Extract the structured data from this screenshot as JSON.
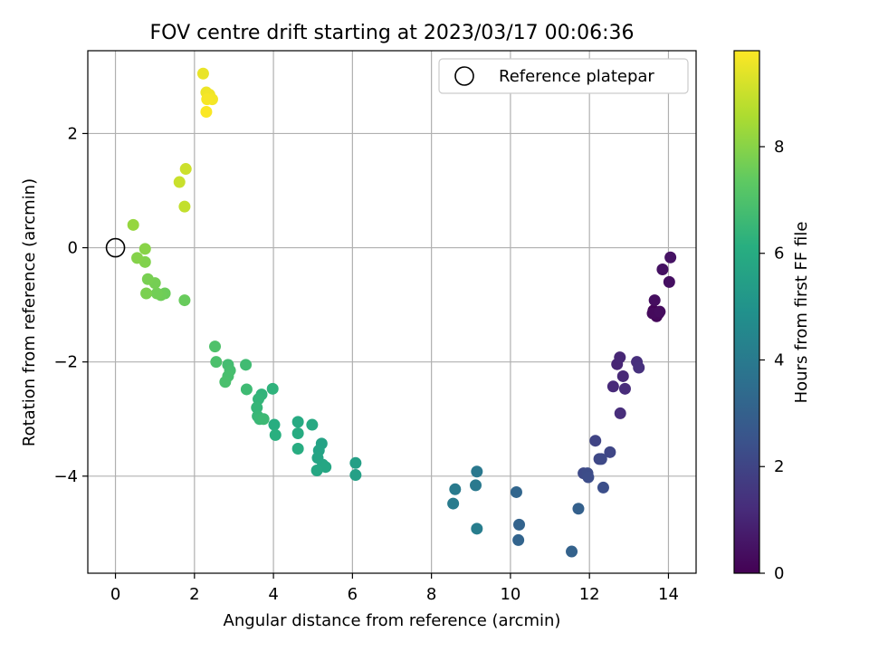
{
  "chart_data": {
    "type": "scatter",
    "title": "FOV centre drift starting at 2023/03/17 00:06:36",
    "xlabel": "Angular distance from reference (arcmin)",
    "ylabel": "Rotation from reference (arcmin)",
    "xlim": [
      -0.7,
      14.7
    ],
    "ylim": [
      -5.7,
      3.45
    ],
    "xticks": [
      0,
      2,
      4,
      6,
      8,
      10,
      12,
      14
    ],
    "yticks": [
      -4,
      -2,
      0,
      2
    ],
    "grid": true,
    "legend": {
      "placement": "top-right",
      "entries": [
        "Reference platepar"
      ]
    },
    "reference_point": {
      "x": 0,
      "y": 0,
      "label": "Reference platepar"
    },
    "colorbar": {
      "label": "Hours from first FF file",
      "colormap": "viridis",
      "range": [
        0,
        9.8
      ],
      "ticks": [
        0,
        2,
        4,
        6,
        8
      ]
    },
    "point_value_name": "hours",
    "points": [
      {
        "x": 13.62,
        "y": -1.1,
        "c": 0.1
      },
      {
        "x": 13.7,
        "y": -1.2,
        "c": 0.15
      },
      {
        "x": 13.75,
        "y": -1.15,
        "c": 0.2
      },
      {
        "x": 13.6,
        "y": -1.15,
        "c": 0.25
      },
      {
        "x": 13.78,
        "y": -1.12,
        "c": 0.3
      },
      {
        "x": 13.65,
        "y": -0.92,
        "c": 0.35
      },
      {
        "x": 14.02,
        "y": -0.6,
        "c": 0.4
      },
      {
        "x": 13.85,
        "y": -0.38,
        "c": 0.45
      },
      {
        "x": 14.05,
        "y": -0.17,
        "c": 0.5
      },
      {
        "x": 12.7,
        "y": -2.04,
        "c": 1.0
      },
      {
        "x": 12.77,
        "y": -1.92,
        "c": 1.05
      },
      {
        "x": 12.85,
        "y": -2.25,
        "c": 1.1
      },
      {
        "x": 12.6,
        "y": -2.43,
        "c": 1.15
      },
      {
        "x": 12.9,
        "y": -2.47,
        "c": 1.2
      },
      {
        "x": 12.78,
        "y": -2.9,
        "c": 1.25
      },
      {
        "x": 13.2,
        "y": -2.0,
        "c": 1.3
      },
      {
        "x": 13.25,
        "y": -2.1,
        "c": 1.35
      },
      {
        "x": 12.15,
        "y": -3.38,
        "c": 2.0
      },
      {
        "x": 12.52,
        "y": -3.58,
        "c": 2.05
      },
      {
        "x": 12.25,
        "y": -3.7,
        "c": 2.1
      },
      {
        "x": 12.3,
        "y": -3.7,
        "c": 2.15
      },
      {
        "x": 11.85,
        "y": -3.95,
        "c": 2.2
      },
      {
        "x": 11.95,
        "y": -3.95,
        "c": 2.25
      },
      {
        "x": 11.97,
        "y": -4.02,
        "c": 2.3
      },
      {
        "x": 12.35,
        "y": -4.2,
        "c": 2.35
      },
      {
        "x": 11.72,
        "y": -4.57,
        "c": 3.0
      },
      {
        "x": 11.55,
        "y": -5.32,
        "c": 3.05
      },
      {
        "x": 10.22,
        "y": -4.85,
        "c": 3.1
      },
      {
        "x": 10.2,
        "y": -5.12,
        "c": 3.15
      },
      {
        "x": 10.15,
        "y": -4.28,
        "c": 3.2
      },
      {
        "x": 9.15,
        "y": -3.92,
        "c": 3.9
      },
      {
        "x": 9.12,
        "y": -4.16,
        "c": 3.95
      },
      {
        "x": 8.6,
        "y": -4.23,
        "c": 4.0
      },
      {
        "x": 8.55,
        "y": -4.48,
        "c": 4.05
      },
      {
        "x": 9.15,
        "y": -4.92,
        "c": 4.1
      },
      {
        "x": 6.08,
        "y": -3.77,
        "c": 5.5
      },
      {
        "x": 6.08,
        "y": -3.98,
        "c": 5.55
      },
      {
        "x": 5.22,
        "y": -3.43,
        "c": 5.6
      },
      {
        "x": 5.15,
        "y": -3.55,
        "c": 5.65
      },
      {
        "x": 5.12,
        "y": -3.68,
        "c": 5.7
      },
      {
        "x": 5.25,
        "y": -3.8,
        "c": 5.75
      },
      {
        "x": 5.32,
        "y": -3.84,
        "c": 5.8
      },
      {
        "x": 5.1,
        "y": -3.9,
        "c": 5.85
      },
      {
        "x": 4.98,
        "y": -3.1,
        "c": 5.9
      },
      {
        "x": 4.62,
        "y": -3.05,
        "c": 5.95
      },
      {
        "x": 4.62,
        "y": -3.25,
        "c": 6.0
      },
      {
        "x": 4.62,
        "y": -3.52,
        "c": 6.05
      },
      {
        "x": 4.02,
        "y": -3.1,
        "c": 6.1
      },
      {
        "x": 4.05,
        "y": -3.28,
        "c": 6.15
      },
      {
        "x": 3.98,
        "y": -2.47,
        "c": 6.3
      },
      {
        "x": 3.7,
        "y": -2.57,
        "c": 6.35
      },
      {
        "x": 3.62,
        "y": -2.65,
        "c": 6.4
      },
      {
        "x": 3.58,
        "y": -2.8,
        "c": 6.45
      },
      {
        "x": 3.6,
        "y": -2.95,
        "c": 6.5
      },
      {
        "x": 3.65,
        "y": -3.0,
        "c": 6.55
      },
      {
        "x": 3.75,
        "y": -3.0,
        "c": 6.6
      },
      {
        "x": 3.32,
        "y": -2.48,
        "c": 6.65
      },
      {
        "x": 3.3,
        "y": -2.05,
        "c": 6.7
      },
      {
        "x": 2.85,
        "y": -2.05,
        "c": 6.75
      },
      {
        "x": 2.9,
        "y": -2.15,
        "c": 6.8
      },
      {
        "x": 2.85,
        "y": -2.25,
        "c": 6.85
      },
      {
        "x": 2.78,
        "y": -2.35,
        "c": 6.9
      },
      {
        "x": 2.55,
        "y": -2.0,
        "c": 6.95
      },
      {
        "x": 2.52,
        "y": -1.73,
        "c": 7.0
      },
      {
        "x": 1.75,
        "y": -0.92,
        "c": 7.5
      },
      {
        "x": 1.25,
        "y": -0.8,
        "c": 7.55
      },
      {
        "x": 1.15,
        "y": -0.83,
        "c": 7.6
      },
      {
        "x": 1.05,
        "y": -0.8,
        "c": 7.65
      },
      {
        "x": 1.0,
        "y": -0.62,
        "c": 7.7
      },
      {
        "x": 0.82,
        "y": -0.55,
        "c": 7.75
      },
      {
        "x": 0.78,
        "y": -0.8,
        "c": 7.8
      },
      {
        "x": 0.75,
        "y": -0.25,
        "c": 7.9
      },
      {
        "x": 0.55,
        "y": -0.18,
        "c": 7.95
      },
      {
        "x": 0.75,
        "y": -0.02,
        "c": 8.0
      },
      {
        "x": 0.45,
        "y": 0.4,
        "c": 8.2
      },
      {
        "x": 1.75,
        "y": 0.72,
        "c": 8.9
      },
      {
        "x": 1.62,
        "y": 1.15,
        "c": 9.0
      },
      {
        "x": 1.78,
        "y": 1.38,
        "c": 9.05
      },
      {
        "x": 2.22,
        "y": 3.05,
        "c": 9.5
      },
      {
        "x": 2.3,
        "y": 2.72,
        "c": 9.55
      },
      {
        "x": 2.38,
        "y": 2.68,
        "c": 9.6
      },
      {
        "x": 2.45,
        "y": 2.6,
        "c": 9.65
      },
      {
        "x": 2.32,
        "y": 2.6,
        "c": 9.7
      },
      {
        "x": 2.3,
        "y": 2.38,
        "c": 9.75
      }
    ]
  }
}
